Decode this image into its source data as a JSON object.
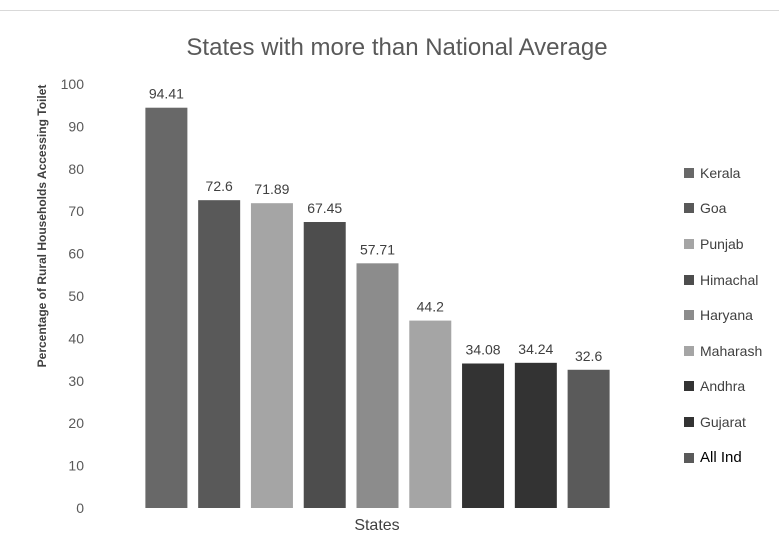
{
  "chart_data": {
    "type": "bar",
    "title": "States with more than National Average",
    "xlabel": "States",
    "ylabel": "Percentage of Rural Households Accessing Toilet",
    "categories": [
      "Kerala",
      "Goa",
      "Punjab",
      "Himachal",
      "Haryana",
      "Maharash",
      "Andhra",
      "Gujarat",
      "All Ind"
    ],
    "values": [
      94.41,
      72.6,
      71.89,
      67.45,
      57.71,
      44.2,
      34.08,
      34.24,
      32.6
    ],
    "value_labels": [
      "94.41",
      "72.6",
      "71.89",
      "67.45",
      "57.71",
      "44.2",
      "34.08",
      "34.24",
      "32.6"
    ],
    "colors": [
      "#686868",
      "#595959",
      "#a5a5a5",
      "#4d4d4d",
      "#8c8c8c",
      "#a5a5a5",
      "#333333",
      "#333333",
      "#5a5a5a"
    ],
    "ylim": [
      0,
      100
    ],
    "yticks": [
      "0",
      "10",
      "20",
      "30",
      "40",
      "50",
      "60",
      "70",
      "80",
      "90",
      "100"
    ],
    "grid": false,
    "legend_placement": "right"
  }
}
